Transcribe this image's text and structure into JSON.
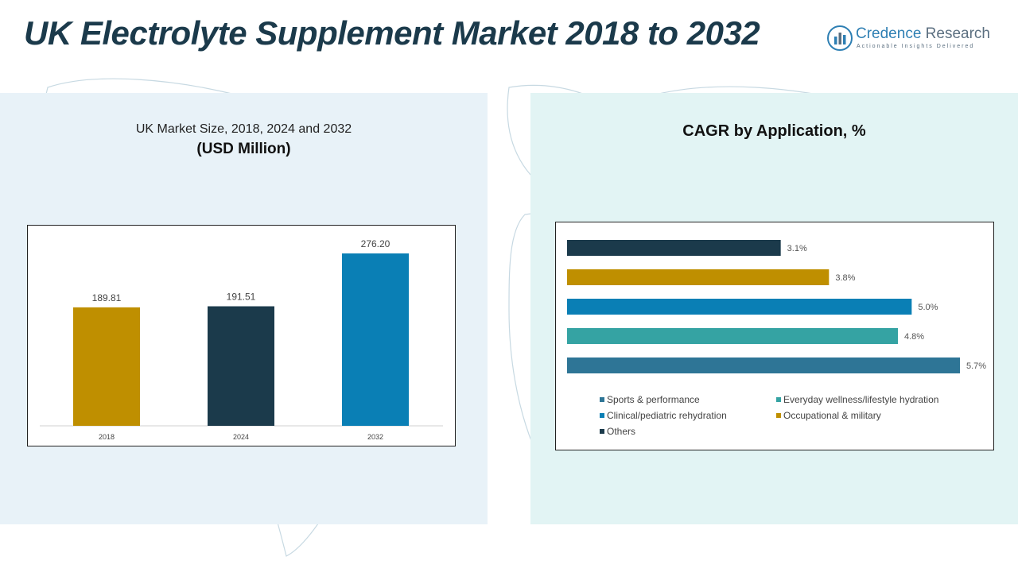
{
  "header": {
    "title": "UK Electrolyte Supplement Market 2018 to 2032",
    "logo": {
      "name_main": "Credence",
      "name_accent": "Research",
      "tagline": "Actionable Insights Delivered",
      "icon": "credence-research-logo-icon"
    }
  },
  "left_chart": {
    "title": "UK Market Size, 2018, 2024 and 2032",
    "subtitle": "(USD Million)"
  },
  "right_chart": {
    "title": "CAGR by Application, %"
  },
  "chart_data": [
    {
      "type": "bar",
      "title": "UK Market Size, 2018, 2024 and 2032",
      "subtitle": "(USD Million)",
      "categories": [
        "2018",
        "2024",
        "2032"
      ],
      "values": [
        189.81,
        191.51,
        276.2
      ],
      "value_labels": [
        "189.81",
        "191.51",
        "276.20"
      ],
      "colors": [
        "#bf8f00",
        "#1b3a4b",
        "#0a7fb5"
      ],
      "ylim": [
        0,
        276.2
      ],
      "grid": false
    },
    {
      "type": "bar",
      "orientation": "horizontal",
      "title": "CAGR by Application, %",
      "series": [
        {
          "name": "Others",
          "value": 3.1,
          "label": "3.1%",
          "color": "#1b3a4b"
        },
        {
          "name": "Occupational & military",
          "value": 3.8,
          "label": "3.8%",
          "color": "#bf8f00"
        },
        {
          "name": "Clinical/pediatric rehydration",
          "value": 5.0,
          "label": "5.0%",
          "color": "#0a7fb5"
        },
        {
          "name": "Everyday wellness/lifestyle hydration",
          "value": 4.8,
          "label": "4.8%",
          "color": "#35a3a3"
        },
        {
          "name": "Sports & performance",
          "value": 5.7,
          "label": "5.7%",
          "color": "#2e7596"
        }
      ],
      "legend": [
        "Sports & performance",
        "Everyday wellness/lifestyle hydration",
        "Clinical/pediatric rehydration",
        "Occupational & military",
        "Others"
      ],
      "legend_position": "bottom",
      "xlim": [
        0,
        5.7
      ],
      "grid": false
    }
  ]
}
